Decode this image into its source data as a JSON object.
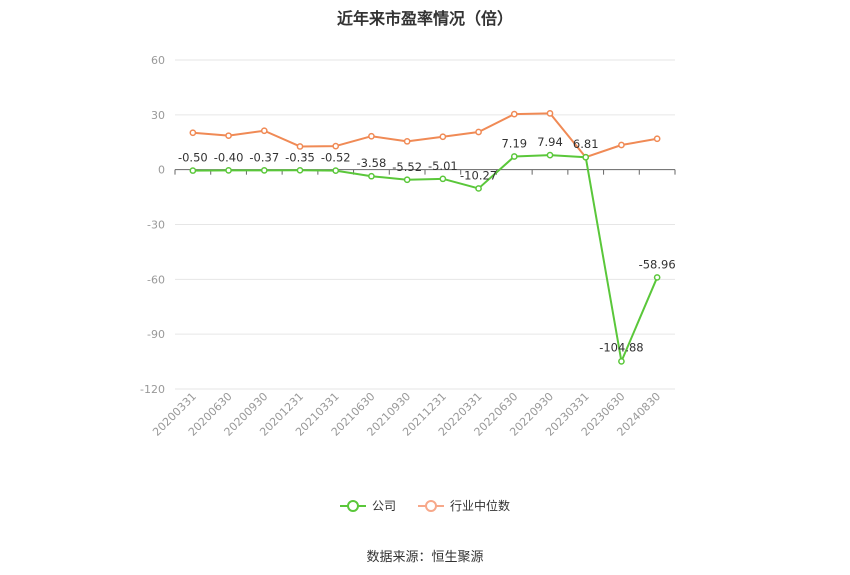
{
  "title": "近年来市盈率情况（倍）",
  "source": "数据来源：恒生聚源",
  "chart_data": {
    "type": "line",
    "categories": [
      "20200331",
      "20200630",
      "20200930",
      "20201231",
      "20210331",
      "20210630",
      "20210930",
      "20211231",
      "20220331",
      "20220630",
      "20220930",
      "20230331",
      "20230630",
      "20240830"
    ],
    "ylim": [
      -120,
      60
    ],
    "yticks": [
      60,
      30,
      0,
      -30,
      -60,
      -90,
      -120
    ],
    "grid": true,
    "legend_position": "bottom",
    "series": [
      {
        "name": "公司",
        "color": "#5ac73a",
        "values": [
          -0.5,
          -0.4,
          -0.37,
          -0.35,
          -0.52,
          -3.58,
          -5.52,
          -5.01,
          -10.27,
          7.19,
          7.94,
          6.81,
          -104.88,
          -58.96
        ],
        "labels": [
          "-0.50",
          "-0.40",
          "-0.37",
          "-0.35",
          "-0.52",
          "-3.58",
          "-5.52",
          "-5.01",
          "-10.27",
          "7.19",
          "7.94",
          "6.81",
          "-104.88",
          "-58.96"
        ]
      },
      {
        "name": "行业中位数",
        "color": "#f08a55",
        "values": [
          20.2,
          18.6,
          21.3,
          12.7,
          12.9,
          18.3,
          15.5,
          18.0,
          20.6,
          30.4,
          30.8,
          6.8,
          13.5,
          16.9
        ]
      }
    ]
  }
}
